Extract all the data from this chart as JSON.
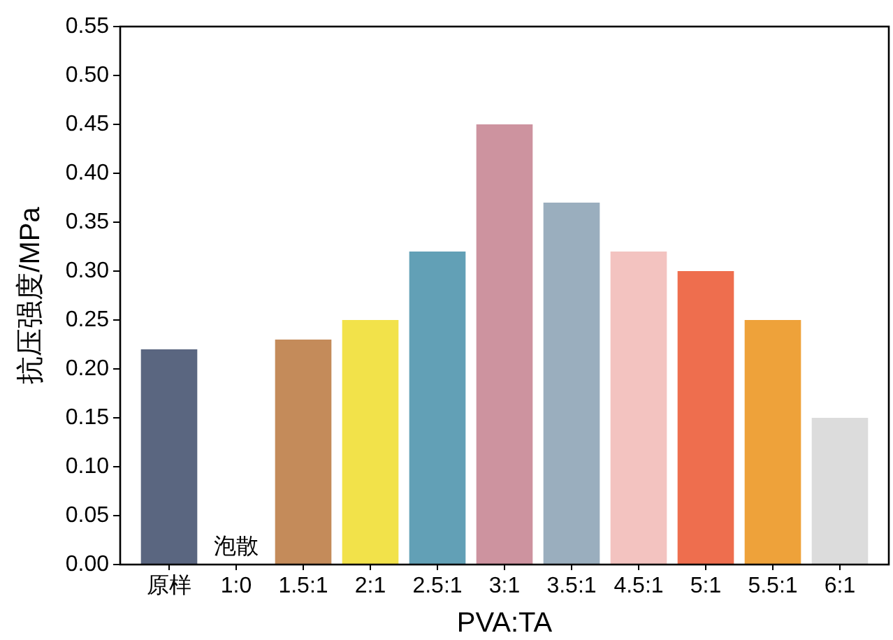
{
  "chart_data": {
    "type": "bar",
    "xlabel": "PVA:TA",
    "ylabel": "抗压强度/MPa",
    "categories": [
      "原样",
      "1:0",
      "1.5:1",
      "2:1",
      "2.5:1",
      "3:1",
      "3.5:1",
      "4.5:1",
      "5:1",
      "5.5:1",
      "6:1"
    ],
    "values": [
      0.22,
      null,
      0.23,
      0.25,
      0.32,
      0.45,
      0.37,
      0.32,
      0.3,
      0.25,
      0.15
    ],
    "colors": [
      "#5a6680",
      null,
      "#c48b5a",
      "#f2e24a",
      "#62a0b6",
      "#cd939f",
      "#9aaebe",
      "#f3c3c0",
      "#ee6e4e",
      "#eea23a",
      "#dcdcdc"
    ],
    "ylim": [
      0,
      0.55
    ],
    "yticks": [
      {
        "value": 0,
        "label": "0.00"
      },
      {
        "value": 0.05,
        "label": "0.05"
      },
      {
        "value": 0.1,
        "label": "0.10"
      },
      {
        "value": 0.15,
        "label": "0.15"
      },
      {
        "value": 0.2,
        "label": "0.20"
      },
      {
        "value": 0.25,
        "label": "0.25"
      },
      {
        "value": 0.3,
        "label": "0.30"
      },
      {
        "value": 0.35,
        "label": "0.35"
      },
      {
        "value": 0.4,
        "label": "0.40"
      },
      {
        "value": 0.45,
        "label": "0.45"
      },
      {
        "value": 0.5,
        "label": "0.50"
      },
      {
        "value": 0.55,
        "label": "0.55"
      }
    ],
    "annotations": [
      "泡散"
    ],
    "grid": false
  }
}
